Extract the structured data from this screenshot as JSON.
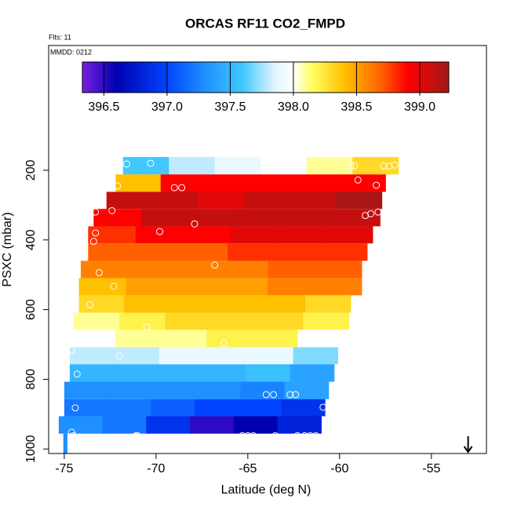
{
  "chart_data": {
    "type": "curtain",
    "title": "ORCAS RF11 CO2_FMPD",
    "annotations": [
      "Flts: 11",
      "MMDD: 0212"
    ],
    "xlabel": "Latitude (deg N)",
    "ylabel": "PSXC (mbar)",
    "xlim": [
      -75.85,
      -52.0
    ],
    "xticks": [
      -75,
      -70,
      -65,
      -60,
      -55
    ],
    "ylim": [
      1013,
      -158
    ],
    "yticks": [
      200,
      400,
      600,
      800,
      1000
    ],
    "clim": [
      396.33,
      399.23
    ],
    "cticks": [
      396.5,
      {
        "value": 397,
        "label": "397.0"
      },
      397.5,
      {
        "value": 398,
        "label": "398.0"
      },
      398.5,
      {
        "value": 399,
        "label": "399.0"
      }
    ],
    "colormap": [
      [
        396.33,
        "#7a1fe0"
      ],
      [
        396.6,
        "#0000b0"
      ],
      [
        397.0,
        "#0044ff"
      ],
      [
        397.3,
        "#1e90ff"
      ],
      [
        397.6,
        "#40c8ff"
      ],
      [
        397.85,
        "#e0f4ff"
      ],
      [
        398.0,
        "#ffffff"
      ],
      [
        398.15,
        "#ffff60"
      ],
      [
        398.4,
        "#ffc000"
      ],
      [
        398.7,
        "#ff6000"
      ],
      [
        398.9,
        "#ff0000"
      ],
      [
        399.23,
        "#a01818"
      ]
    ],
    "rows": [
      {
        "p": [
          162,
          212
        ],
        "lat": [
          -71.8,
          -56.8
        ],
        "values": [
          397.6,
          397.8,
          397.9,
          398.0,
          398.1,
          398.3
        ]
      },
      {
        "p": [
          212,
          262
        ],
        "lat": [
          -72.2,
          -57.5
        ],
        "values": [
          398.4,
          398.9,
          398.9,
          398.9,
          398.9,
          398.9
        ]
      },
      {
        "p": [
          262,
          311
        ],
        "lat": [
          -72.7,
          -57.7
        ],
        "values": [
          399.1,
          399.1,
          399.0,
          399.1,
          399.1,
          399.2
        ]
      },
      {
        "p": [
          311,
          361
        ],
        "lat": [
          -73.4,
          -57.8
        ],
        "values": [
          398.9,
          399.1,
          399.1,
          399.1,
          399.1,
          399.1
        ]
      },
      {
        "p": [
          361,
          410
        ],
        "lat": [
          -73.7,
          -58.2
        ],
        "values": [
          398.8,
          398.9,
          398.9,
          399.0,
          399.0,
          399.0
        ]
      },
      {
        "p": [
          410,
          460
        ],
        "lat": [
          -73.7,
          -58.5
        ],
        "values": [
          398.7,
          398.7,
          398.7,
          398.8,
          398.8,
          398.8
        ]
      },
      {
        "p": [
          460,
          510
        ],
        "lat": [
          -74.1,
          -58.8
        ],
        "values": [
          398.6,
          398.6,
          398.6,
          398.6,
          398.7,
          398.7
        ]
      },
      {
        "p": [
          510,
          559
        ],
        "lat": [
          -74.2,
          -58.8
        ],
        "values": [
          398.4,
          398.5,
          398.5,
          398.5,
          398.6,
          398.6
        ]
      },
      {
        "p": [
          559,
          609
        ],
        "lat": [
          -74.2,
          -59.4
        ],
        "values": [
          398.3,
          398.4,
          398.4,
          398.4,
          398.4,
          398.3
        ]
      },
      {
        "p": [
          609,
          658
        ],
        "lat": [
          -74.5,
          -59.5
        ],
        "values": [
          398.1,
          398.2,
          398.3,
          398.3,
          398.3,
          398.2
        ]
      },
      {
        "p": [
          658,
          708
        ],
        "lat": [
          -74.7,
          -59.8
        ],
        "values": [
          398.0,
          398.1,
          398.1,
          398.2,
          398.2,
          398.0
        ]
      },
      {
        "p": [
          708,
          757
        ],
        "lat": [
          -74.7,
          -60.1
        ],
        "values": [
          397.8,
          397.8,
          397.9,
          397.9,
          397.9,
          397.7
        ]
      },
      {
        "p": [
          757,
          807
        ],
        "lat": [
          -74.7,
          -60.3
        ],
        "values": [
          397.5,
          397.5,
          397.5,
          397.5,
          397.55,
          397.4
        ]
      },
      {
        "p": [
          807,
          857
        ],
        "lat": [
          -75.0,
          -60.6
        ],
        "values": [
          397.3,
          397.3,
          397.3,
          397.3,
          397.25,
          397.4
        ]
      },
      {
        "p": [
          857,
          906
        ],
        "lat": [
          -75.0,
          -60.8
        ],
        "values": [
          397.2,
          397.2,
          397.1,
          397.0,
          397.0,
          396.9
        ]
      },
      {
        "p": [
          906,
          956
        ],
        "lat": [
          -75.3,
          -61.0
        ],
        "values": [
          397.3,
          397.2,
          396.9,
          396.5,
          396.6,
          396.8
        ]
      },
      {
        "p": [
          956,
          1013
        ],
        "lat": [
          -75.05,
          -74.85
        ],
        "values": [
          397.3
        ]
      }
    ],
    "points": [
      [
        -71.6,
        182
      ],
      [
        -70.3,
        180
      ],
      [
        -59.4,
        187
      ],
      [
        -59.2,
        187
      ],
      [
        -57.6,
        188
      ],
      [
        -57.3,
        188
      ],
      [
        -57.0,
        185
      ],
      [
        -72.1,
        245
      ],
      [
        -69.0,
        250
      ],
      [
        -68.6,
        250
      ],
      [
        -59.0,
        228
      ],
      [
        -58.0,
        243
      ],
      [
        -73.3,
        320
      ],
      [
        -72.4,
        316
      ],
      [
        -58.6,
        330
      ],
      [
        -58.3,
        325
      ],
      [
        -57.9,
        320
      ],
      [
        -73.7,
        350
      ],
      [
        -73.3,
        380
      ],
      [
        -73.4,
        404
      ],
      [
        -69.8,
        376
      ],
      [
        -67.9,
        354
      ],
      [
        -73.1,
        494
      ],
      [
        -72.3,
        533
      ],
      [
        -66.8,
        472
      ],
      [
        -73.6,
        586
      ],
      [
        -70.5,
        650
      ],
      [
        -66.3,
        697
      ],
      [
        -74.6,
        716
      ],
      [
        -72.0,
        733
      ],
      [
        -74.3,
        785
      ],
      [
        -64.0,
        844
      ],
      [
        -63.6,
        844
      ],
      [
        -62.7,
        844
      ],
      [
        -62.4,
        844
      ],
      [
        -74.4,
        882
      ],
      [
        -60.9,
        880
      ],
      [
        -74.6,
        952
      ],
      [
        -74.5,
        962
      ],
      [
        -71.1,
        962
      ],
      [
        -71.0,
        962
      ],
      [
        -65.3,
        962
      ],
      [
        -65.0,
        962
      ],
      [
        -64.7,
        962
      ],
      [
        -63.5,
        962
      ],
      [
        -62.3,
        962
      ],
      [
        -61.9,
        962
      ],
      [
        -61.6,
        962
      ],
      [
        -61.3,
        962
      ]
    ],
    "arrow_lat": -53
  }
}
